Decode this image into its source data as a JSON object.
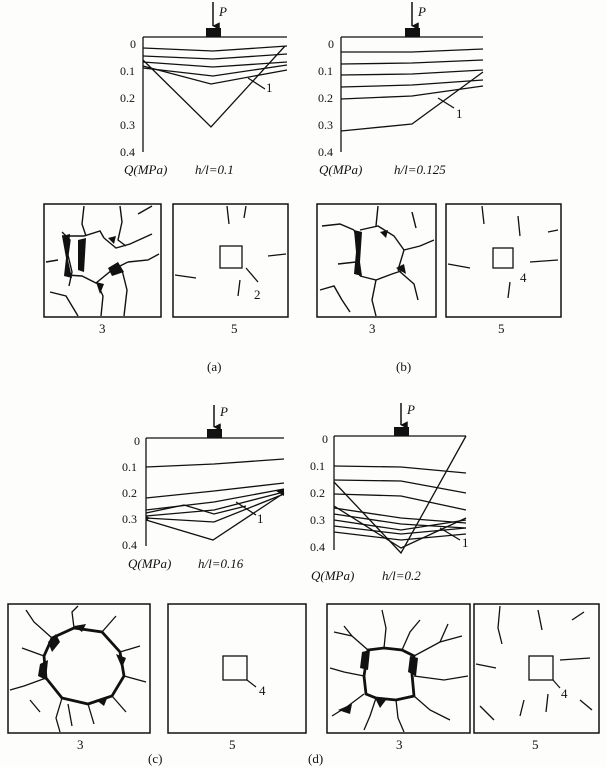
{
  "panels": [
    {
      "id": "a",
      "caption": "(a)",
      "load_label": "P",
      "axis_unit_label": "Q(MPa)",
      "ratio_label": "h/l=0.1",
      "ticks": [
        "0",
        "0.1",
        "0.2",
        "0.3",
        "0.4"
      ],
      "curve_label": "1",
      "crack_label": "3",
      "inner_label": "2",
      "outer_label": "5"
    },
    {
      "id": "b",
      "caption": "(b)",
      "load_label": "P",
      "axis_unit_label": "Q(MPa)",
      "ratio_label": "h/l=0.125",
      "ticks": [
        "0",
        "0.1",
        "0.2",
        "0.3",
        "0.4"
      ],
      "curve_label": "1",
      "crack_label": "3",
      "inner_label": "4",
      "outer_label": "5"
    },
    {
      "id": "c",
      "caption": "(c)",
      "load_label": "P",
      "axis_unit_label": "Q(MPa)",
      "ratio_label": "h/l=0.16",
      "ticks": [
        "0",
        "0.1",
        "0.2",
        "0.3",
        "0.4"
      ],
      "curve_label": "1",
      "crack_label": "3",
      "inner_label": "4",
      "outer_label": "5"
    },
    {
      "id": "d",
      "caption": "(d)",
      "load_label": "P",
      "axis_unit_label": "Q(MPa)",
      "ratio_label": "h/l=0.2",
      "ticks": [
        "0",
        "0.1",
        "0.2",
        "0.3",
        "0.4"
      ],
      "curve_label": "1",
      "crack_label": "3",
      "inner_label": "4",
      "outer_label": "5"
    }
  ]
}
